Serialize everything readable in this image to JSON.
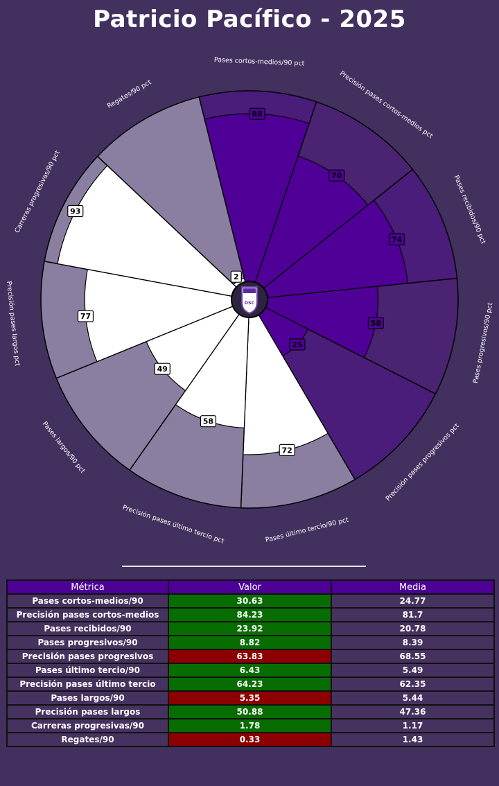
{
  "title": "Patricio Pacífico - 2025",
  "colors": {
    "background": "#42305f",
    "slice_attack": "#4f0096",
    "slice_attack_bg": "#4a1d7a",
    "slice_passing_bg": "#4a2472",
    "slice_other_fill": "#ffffff",
    "slice_other_bg": "#8a7fa0",
    "above_average": "#086d00",
    "below_average": "#8c0000",
    "table_header": "#4c0096"
  },
  "chart_data": {
    "type": "radar-pizza",
    "max": 100,
    "series": [
      {
        "label": "Pases cortos-medios/90 pct",
        "value": 88,
        "group": "purple"
      },
      {
        "label": "Precisión pases cortos-medios pct",
        "value": 70,
        "group": "purple"
      },
      {
        "label": "Pases recibidos/90 pct",
        "value": 74,
        "group": "purple"
      },
      {
        "label": "Pases progresivos/90 pct",
        "value": 58,
        "group": "purple"
      },
      {
        "label": "Precisión pases progresivos pct",
        "value": 25,
        "group": "purple"
      },
      {
        "label": "Pases último tercio/90 pct",
        "value": 72,
        "group": "white"
      },
      {
        "label": "Precisión pases último tercio pct",
        "value": 58,
        "group": "white"
      },
      {
        "label": "Pases largos/90 pct",
        "value": 49,
        "group": "white"
      },
      {
        "label": "Precisión pases largos pct",
        "value": 77,
        "group": "white"
      },
      {
        "label": "Carreras progresivas/90 pct",
        "value": 93,
        "group": "white"
      },
      {
        "label": "Regates/90 pct",
        "value": 2,
        "group": "white"
      }
    ]
  },
  "logo": {
    "text": "DSC",
    "icon": "club-crest-icon"
  },
  "table": {
    "headers": [
      "Métrica",
      "Valor",
      "Media"
    ],
    "rows": [
      {
        "metric": "Pases cortos-medios/90",
        "value": "30.63",
        "avg": "24.77",
        "status": "good"
      },
      {
        "metric": "Precisión pases cortos-medios",
        "value": "84.23",
        "avg": "81.7",
        "status": "good"
      },
      {
        "metric": "Pases recibidos/90",
        "value": "23.92",
        "avg": "20.78",
        "status": "good"
      },
      {
        "metric": "Pases progresivos/90",
        "value": "8.82",
        "avg": "8.39",
        "status": "good"
      },
      {
        "metric": "Precisión pases progresivos",
        "value": "63.83",
        "avg": "68.55",
        "status": "bad"
      },
      {
        "metric": "Pases último tercio/90",
        "value": "6.43",
        "avg": "5.49",
        "status": "good"
      },
      {
        "metric": "Precisión pases último tercio",
        "value": "64.23",
        "avg": "62.35",
        "status": "good"
      },
      {
        "metric": "Pases largos/90",
        "value": "5.35",
        "avg": "5.44",
        "status": "bad"
      },
      {
        "metric": "Precisión pases largos",
        "value": "50.88",
        "avg": "47.36",
        "status": "good"
      },
      {
        "metric": "Carreras progresivas/90",
        "value": "1.78",
        "avg": "1.17",
        "status": "good"
      },
      {
        "metric": "Regates/90",
        "value": "0.33",
        "avg": "1.43",
        "status": "bad"
      }
    ]
  }
}
